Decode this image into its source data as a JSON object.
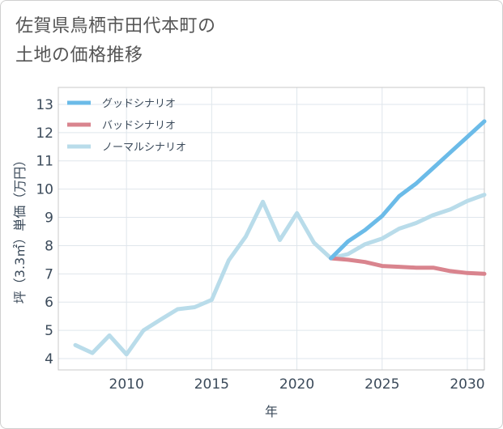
{
  "title": {
    "line1": "佐賀県鳥栖市田代本町の",
    "line2": "土地の価格推移"
  },
  "chart_data": {
    "type": "line",
    "xlabel": "年",
    "ylabel": "坪（3.3㎡）単価（万円）",
    "xlim": [
      2006,
      2031
    ],
    "ylim": [
      3.6,
      13.6
    ],
    "xticks": [
      2010,
      2015,
      2020,
      2025,
      2030
    ],
    "yticks": [
      4,
      5,
      6,
      7,
      8,
      9,
      10,
      11,
      12,
      13
    ],
    "grid": true,
    "legend_position": "top-left",
    "series": [
      {
        "name": "グッドシナリオ",
        "color": "#6bbbe8",
        "x": [
          2022,
          2023,
          2024,
          2025,
          2026,
          2027,
          2028,
          2029,
          2030,
          2031
        ],
        "y": [
          7.55,
          8.15,
          8.55,
          9.05,
          9.75,
          10.2,
          10.75,
          11.3,
          11.85,
          12.4
        ]
      },
      {
        "name": "バッドシナリオ",
        "color": "#d9848e",
        "x": [
          2022,
          2023,
          2024,
          2025,
          2026,
          2027,
          2028,
          2029,
          2030,
          2031
        ],
        "y": [
          7.55,
          7.5,
          7.42,
          7.28,
          7.25,
          7.22,
          7.22,
          7.1,
          7.03,
          7.0
        ]
      },
      {
        "name": "ノーマルシナリオ",
        "color": "#b9dcea",
        "x": [
          2007,
          2008,
          2009,
          2010,
          2011,
          2012,
          2013,
          2014,
          2015,
          2016,
          2017,
          2018,
          2019,
          2020,
          2021,
          2022,
          2023,
          2024,
          2025,
          2026,
          2027,
          2028,
          2029,
          2030,
          2031
        ],
        "y": [
          4.48,
          4.2,
          4.82,
          4.15,
          5.0,
          5.38,
          5.75,
          5.82,
          6.08,
          7.48,
          8.32,
          9.55,
          8.2,
          9.15,
          8.1,
          7.55,
          7.7,
          8.05,
          8.25,
          8.6,
          8.8,
          9.08,
          9.28,
          9.58,
          9.8
        ]
      }
    ]
  }
}
